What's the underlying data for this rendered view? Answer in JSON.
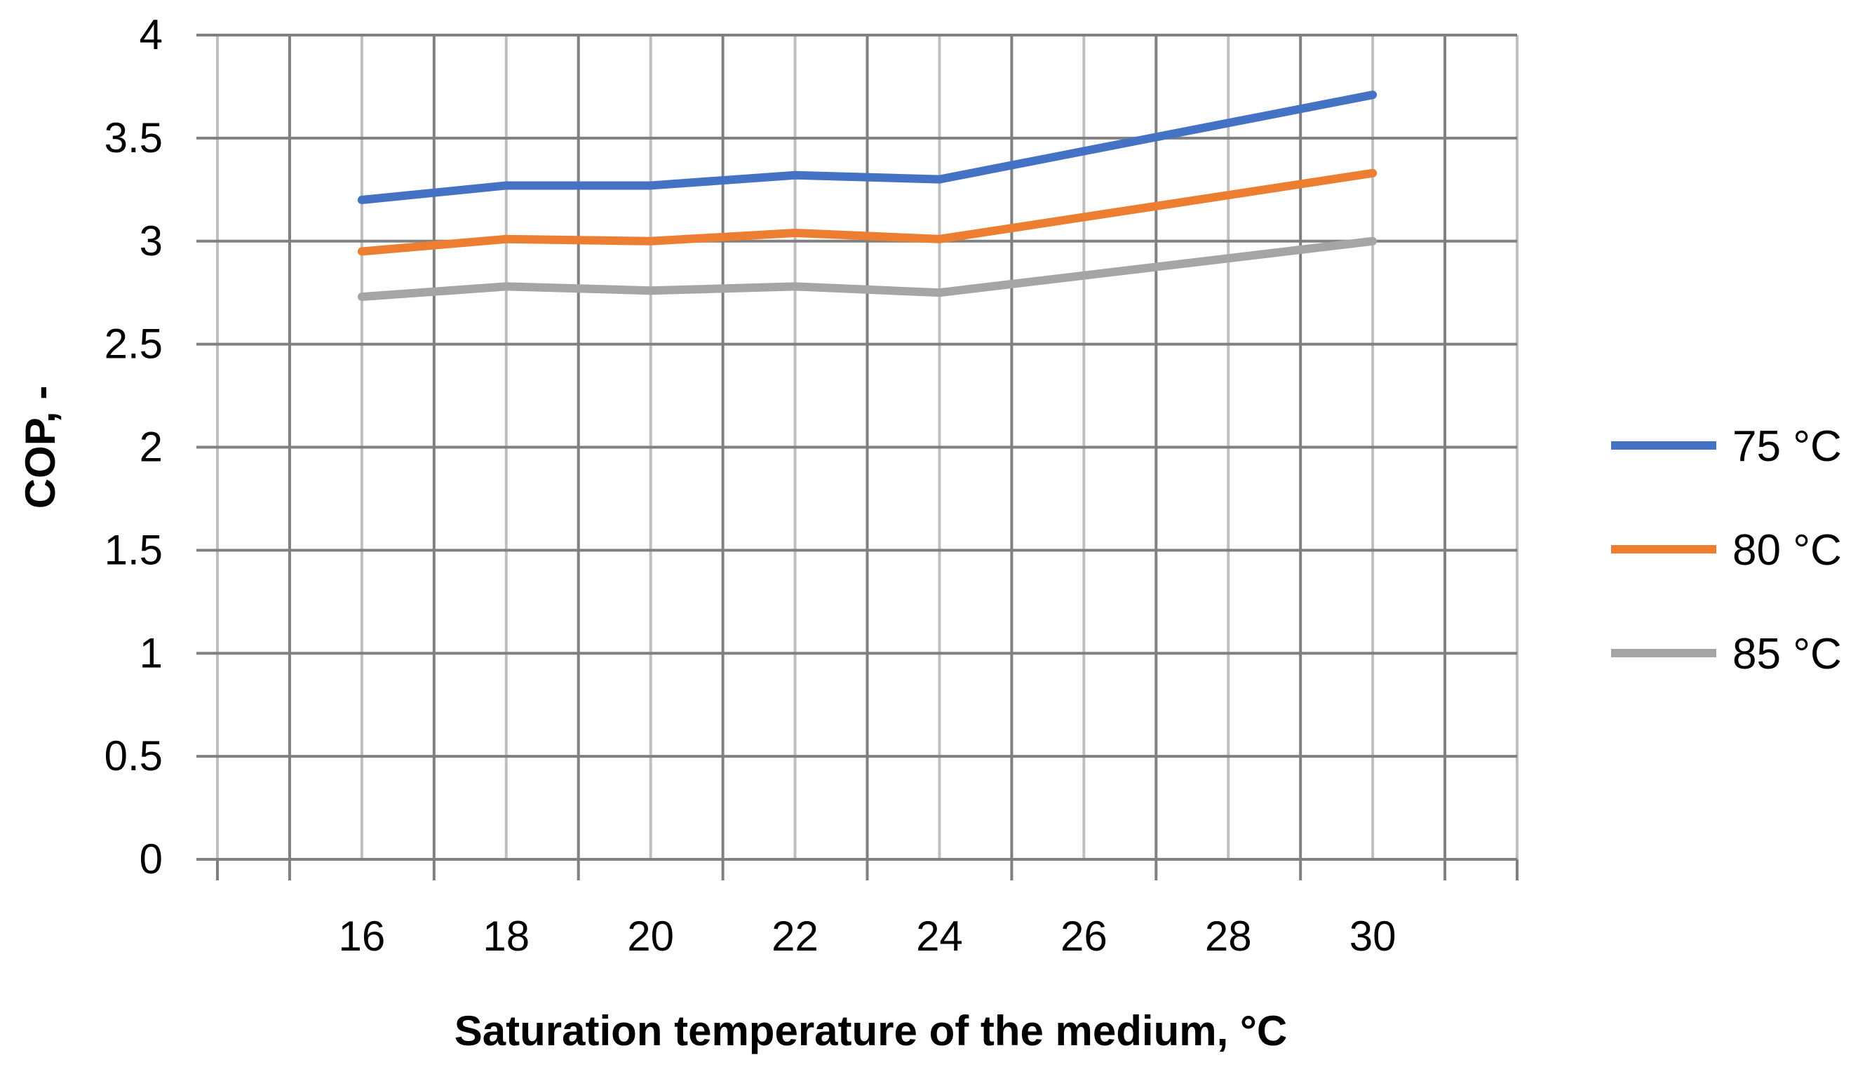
{
  "chart_data": {
    "type": "line",
    "title": "",
    "xlabel": "Saturation temperature of the medium, °C",
    "ylabel": "COP, -",
    "x": [
      16,
      18,
      20,
      22,
      24,
      30
    ],
    "xticks": [
      "16",
      "18",
      "20",
      "22",
      "24",
      "26",
      "28",
      "30"
    ],
    "xtick_values": [
      16,
      18,
      20,
      22,
      24,
      26,
      28,
      30
    ],
    "xlim": [
      14,
      32
    ],
    "ylim": [
      0,
      4
    ],
    "yticks": [
      "0",
      "0.5",
      "1",
      "1.5",
      "2",
      "2.5",
      "3",
      "3.5",
      "4"
    ],
    "ytick_values": [
      0,
      0.5,
      1,
      1.5,
      2,
      2.5,
      3,
      3.5,
      4
    ],
    "grid": true,
    "legend_position": "right",
    "series": [
      {
        "name": "75 °C",
        "color": "#4472C4",
        "values": [
          3.2,
          3.27,
          3.27,
          3.32,
          3.3,
          3.71
        ]
      },
      {
        "name": "80 °C",
        "color": "#ED7D31",
        "values": [
          2.95,
          3.01,
          3.0,
          3.04,
          3.01,
          3.33
        ]
      },
      {
        "name": "85 °C",
        "color": "#A5A5A5",
        "values": [
          2.73,
          2.78,
          2.76,
          2.78,
          2.75,
          3.0
        ]
      }
    ]
  }
}
